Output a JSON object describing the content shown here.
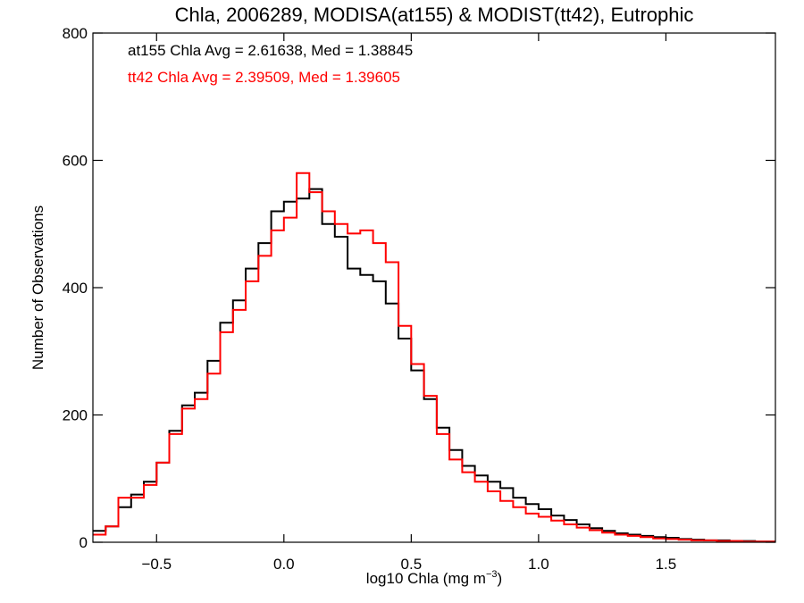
{
  "chart_data": {
    "type": "line",
    "title": "Chla, 2006289, MODISA(at155) & MODIST(tt42), Eutrophic",
    "xlabel_main": "log10 Chla (mg m",
    "xlabel_sup": "−3",
    "xlabel_close": ")",
    "ylabel": "Number of Observations",
    "xlim": [
      -0.75,
      1.93
    ],
    "ylim": [
      0,
      800
    ],
    "xticks": [
      -0.5,
      0.0,
      0.5,
      1.0,
      1.5
    ],
    "xtick_labels": [
      "−0.5",
      "0.0",
      "0.5",
      "1.0",
      "1.5"
    ],
    "yticks": [
      0,
      200,
      400,
      600,
      800
    ],
    "ytick_labels": [
      "0",
      "200",
      "400",
      "600",
      "800"
    ],
    "grid": false,
    "annotations": [
      {
        "text": "at155 Chla Avg = 2.61638, Med = 1.38845",
        "color": "#000000"
      },
      {
        "text": "tt42 Chla Avg = 2.39509, Med = 1.39605",
        "color": "#ff0000"
      }
    ],
    "series": [
      {
        "color": "#000000",
        "points": [
          [
            -0.75,
            18
          ],
          [
            -0.7,
            25
          ],
          [
            -0.65,
            55
          ],
          [
            -0.6,
            75
          ],
          [
            -0.55,
            95
          ],
          [
            -0.5,
            125
          ],
          [
            -0.45,
            175
          ],
          [
            -0.4,
            215
          ],
          [
            -0.35,
            235
          ],
          [
            -0.3,
            285
          ],
          [
            -0.25,
            345
          ],
          [
            -0.2,
            380
          ],
          [
            -0.15,
            430
          ],
          [
            -0.1,
            470
          ],
          [
            -0.05,
            520
          ],
          [
            0.0,
            535
          ],
          [
            0.05,
            540
          ],
          [
            0.1,
            555
          ],
          [
            0.15,
            500
          ],
          [
            0.2,
            480
          ],
          [
            0.25,
            430
          ],
          [
            0.3,
            420
          ],
          [
            0.35,
            410
          ],
          [
            0.4,
            375
          ],
          [
            0.45,
            320
          ],
          [
            0.5,
            270
          ],
          [
            0.55,
            225
          ],
          [
            0.6,
            180
          ],
          [
            0.65,
            145
          ],
          [
            0.7,
            120
          ],
          [
            0.75,
            105
          ],
          [
            0.8,
            95
          ],
          [
            0.85,
            85
          ],
          [
            0.9,
            70
          ],
          [
            0.95,
            60
          ],
          [
            1.0,
            52
          ],
          [
            1.05,
            42
          ],
          [
            1.1,
            35
          ],
          [
            1.15,
            28
          ],
          [
            1.2,
            22
          ],
          [
            1.25,
            18
          ],
          [
            1.3,
            14
          ],
          [
            1.35,
            12
          ],
          [
            1.4,
            10
          ],
          [
            1.45,
            8
          ],
          [
            1.5,
            7
          ],
          [
            1.55,
            5
          ],
          [
            1.6,
            4
          ],
          [
            1.65,
            3
          ],
          [
            1.7,
            3
          ],
          [
            1.75,
            2
          ],
          [
            1.8,
            2
          ],
          [
            1.85,
            1
          ],
          [
            1.9,
            1
          ],
          [
            1.93,
            1
          ]
        ]
      },
      {
        "color": "#ff0000",
        "points": [
          [
            -0.75,
            12
          ],
          [
            -0.7,
            25
          ],
          [
            -0.65,
            70
          ],
          [
            -0.6,
            70
          ],
          [
            -0.55,
            90
          ],
          [
            -0.5,
            125
          ],
          [
            -0.45,
            170
          ],
          [
            -0.4,
            210
          ],
          [
            -0.35,
            225
          ],
          [
            -0.3,
            265
          ],
          [
            -0.25,
            330
          ],
          [
            -0.2,
            365
          ],
          [
            -0.15,
            410
          ],
          [
            -0.1,
            450
          ],
          [
            -0.05,
            490
          ],
          [
            0.0,
            510
          ],
          [
            0.05,
            580
          ],
          [
            0.1,
            550
          ],
          [
            0.15,
            520
          ],
          [
            0.2,
            500
          ],
          [
            0.25,
            485
          ],
          [
            0.3,
            490
          ],
          [
            0.35,
            470
          ],
          [
            0.4,
            440
          ],
          [
            0.45,
            340
          ],
          [
            0.5,
            280
          ],
          [
            0.55,
            230
          ],
          [
            0.6,
            170
          ],
          [
            0.65,
            130
          ],
          [
            0.7,
            110
          ],
          [
            0.75,
            95
          ],
          [
            0.8,
            80
          ],
          [
            0.85,
            65
          ],
          [
            0.9,
            55
          ],
          [
            0.95,
            45
          ],
          [
            1.0,
            40
          ],
          [
            1.05,
            34
          ],
          [
            1.1,
            28
          ],
          [
            1.15,
            23
          ],
          [
            1.2,
            19
          ],
          [
            1.25,
            15
          ],
          [
            1.3,
            12
          ],
          [
            1.35,
            10
          ],
          [
            1.4,
            8
          ],
          [
            1.45,
            6
          ],
          [
            1.5,
            5
          ],
          [
            1.55,
            4
          ],
          [
            1.6,
            3
          ],
          [
            1.65,
            3
          ],
          [
            1.7,
            2
          ],
          [
            1.75,
            2
          ],
          [
            1.8,
            1
          ],
          [
            1.85,
            1
          ],
          [
            1.9,
            1
          ],
          [
            1.93,
            1
          ]
        ]
      }
    ]
  }
}
